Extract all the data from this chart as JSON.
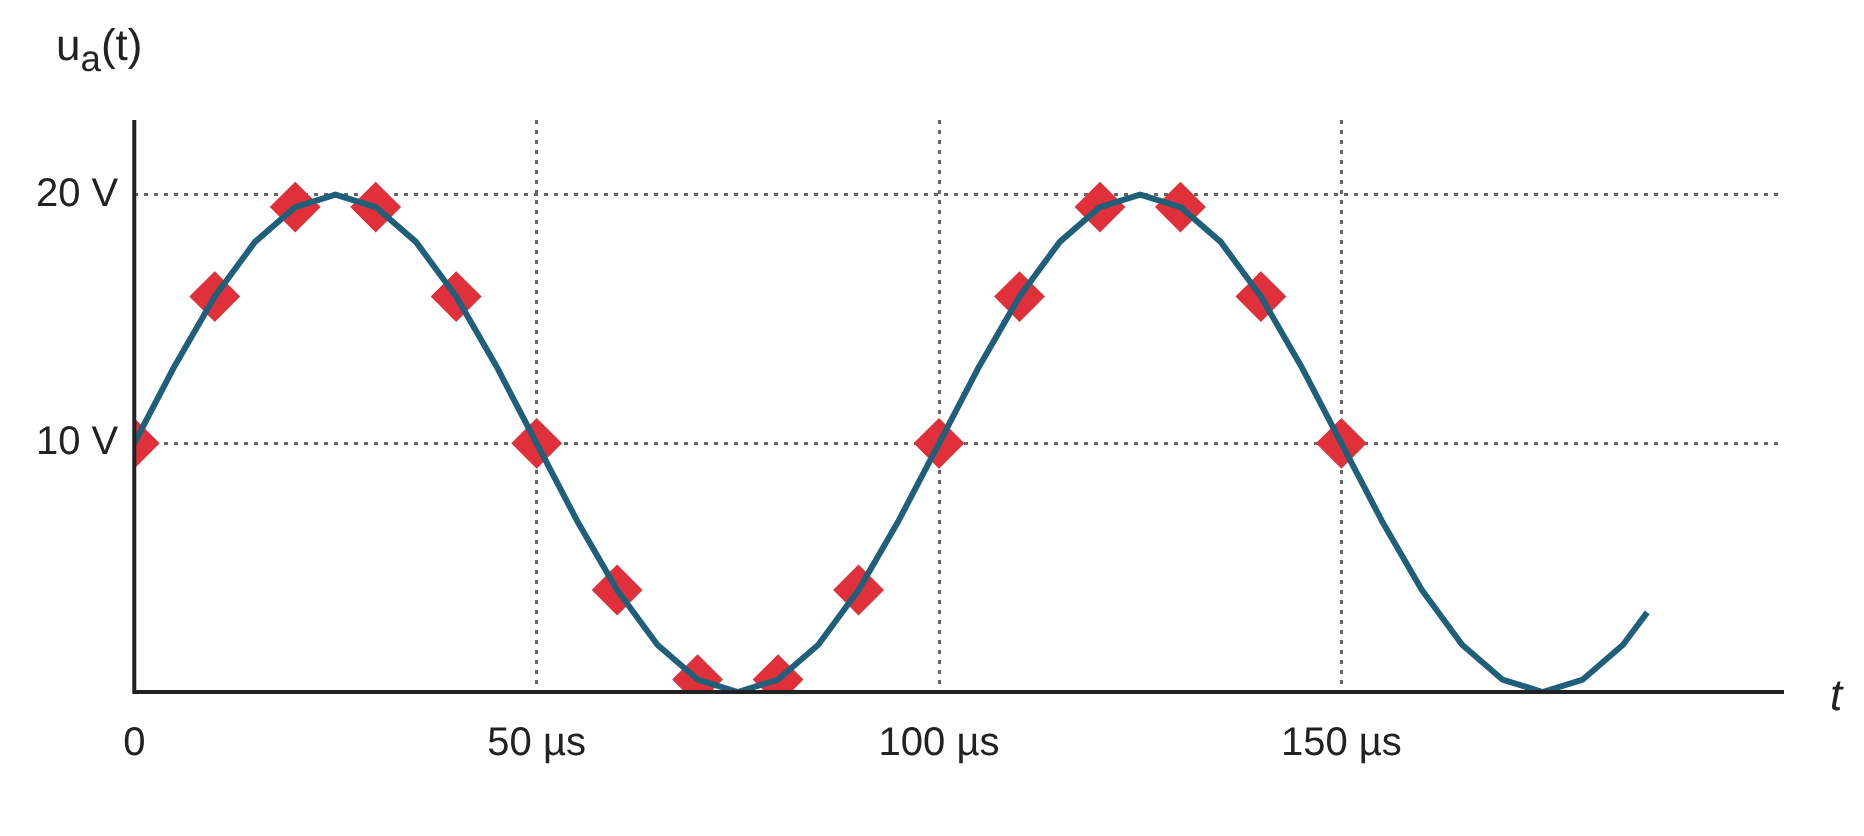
{
  "chart_data": {
    "type": "line",
    "xlabel": "t",
    "ylabel": "u$_{a}$(t)",
    "xlim": [
      0,
      205
    ],
    "ylim": [
      0,
      23
    ],
    "xticks": [
      0,
      {
        "value": 50,
        "label": "50 µs"
      },
      {
        "value": 100,
        "label": "100 µs"
      },
      {
        "value": 150,
        "label": "150 µs"
      }
    ],
    "yticks": [
      {
        "value": 10,
        "label": "10 V"
      },
      {
        "value": 20,
        "label": "20 V"
      }
    ],
    "grid": true,
    "legend": false,
    "series": [
      {
        "type": "line",
        "marker": "none",
        "color": "#1f5f7a",
        "x": [
          0,
          5,
          10,
          15,
          20,
          25,
          30,
          35,
          40,
          45,
          50,
          55,
          60,
          65,
          70,
          75,
          80,
          85,
          90,
          95,
          100,
          105,
          110,
          115,
          120,
          125,
          130,
          135,
          140,
          145,
          150,
          155,
          160,
          165,
          170,
          175,
          180,
          185,
          188
        ],
        "values": [
          10,
          13.1,
          15.9,
          18.1,
          19.5,
          20,
          19.5,
          18.1,
          15.9,
          13.1,
          10,
          6.9,
          4.1,
          1.9,
          0.5,
          0,
          0.5,
          1.9,
          4.1,
          6.9,
          10,
          13.1,
          15.9,
          18.1,
          19.5,
          20,
          19.5,
          18.1,
          15.9,
          13.1,
          10,
          6.9,
          4.1,
          1.9,
          0.5,
          0,
          0.5,
          1.9,
          3.2
        ]
      },
      {
        "type": "scatter",
        "marker": "diamond",
        "color": "#e0303a",
        "x": [
          0,
          10,
          20,
          30,
          40,
          50,
          60,
          70,
          80,
          90,
          100,
          110,
          120,
          130,
          140,
          150
        ],
        "values": [
          10,
          15.9,
          19.5,
          19.5,
          15.9,
          10,
          4.1,
          0.5,
          0.5,
          4.1,
          10,
          15.9,
          19.5,
          19.5,
          15.9,
          10
        ]
      }
    ]
  }
}
